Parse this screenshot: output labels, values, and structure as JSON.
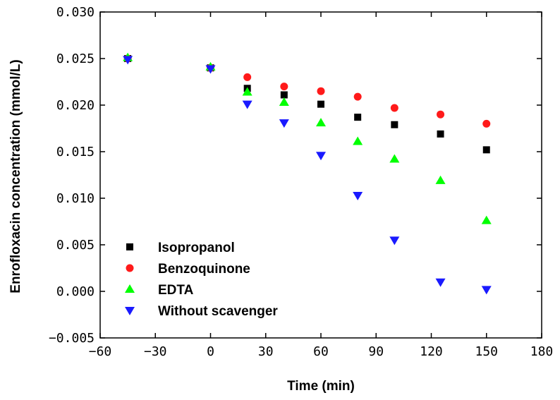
{
  "chart_data": {
    "type": "scatter",
    "xlabel": "Time (min)",
    "ylabel": "Enrofloxacin  concentration (mmol/L)",
    "xlim": [
      -60,
      180
    ],
    "ylim": [
      -0.005,
      0.03
    ],
    "xticks": [
      -60,
      -30,
      0,
      30,
      60,
      90,
      120,
      150,
      180
    ],
    "yticks": [
      -0.005,
      0.0,
      0.005,
      0.01,
      0.015,
      0.02,
      0.025,
      0.03
    ],
    "xtick_labels": [
      "−60",
      "−30",
      "0",
      "30",
      "60",
      "90",
      "120",
      "150",
      "180"
    ],
    "ytick_labels": [
      "−0.005",
      "0.000",
      "0.005",
      "0.010",
      "0.015",
      "0.020",
      "0.025",
      "0.030"
    ],
    "grid": false,
    "legend_position": "bottom-left",
    "series": [
      {
        "name": "Isopropanol",
        "marker": "square",
        "color": "#000000",
        "x": [
          -45,
          0,
          20,
          40,
          60,
          80,
          100,
          125,
          150
        ],
        "y": [
          0.025,
          0.024,
          0.0218,
          0.0211,
          0.0201,
          0.0187,
          0.0179,
          0.0169,
          0.0152
        ]
      },
      {
        "name": "Benzoquinone",
        "marker": "circle",
        "color": "#ff1a1a",
        "x": [
          -45,
          0,
          20,
          40,
          60,
          80,
          100,
          125,
          150
        ],
        "y": [
          0.025,
          0.024,
          0.023,
          0.022,
          0.0215,
          0.0209,
          0.0197,
          0.019,
          0.018
        ]
      },
      {
        "name": "EDTA",
        "marker": "triangle-up",
        "color": "#00ff00",
        "x": [
          -45,
          0,
          20,
          40,
          60,
          80,
          100,
          125,
          150
        ],
        "y": [
          0.0251,
          0.0241,
          0.0214,
          0.0203,
          0.0181,
          0.0161,
          0.0142,
          0.0119,
          0.0076
        ]
      },
      {
        "name": "Without scavenger",
        "marker": "triangle-down",
        "color": "#1a1aff",
        "x": [
          -45,
          0,
          20,
          40,
          60,
          80,
          100,
          125,
          150
        ],
        "y": [
          0.0249,
          0.0239,
          0.0201,
          0.0181,
          0.0146,
          0.0103,
          0.0055,
          0.001,
          0.0002
        ]
      }
    ]
  }
}
